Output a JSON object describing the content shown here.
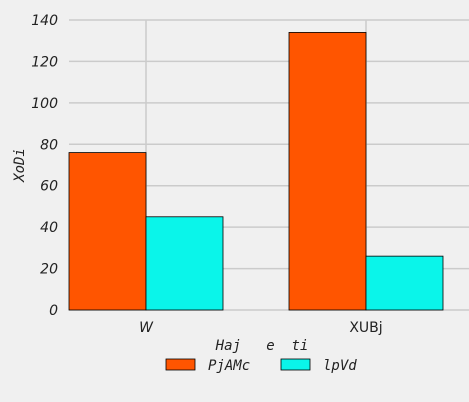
{
  "chart_data": {
    "type": "bar",
    "categories": [
      "W",
      "XUBj"
    ],
    "category_label_styles": [
      "italic",
      "normal"
    ],
    "series": [
      {
        "name": "PjAMc",
        "color": "#ff5500",
        "values": [
          76,
          134
        ]
      },
      {
        "name": "lpVd",
        "color": "#0af5ea",
        "values": [
          45,
          26
        ]
      }
    ],
    "xlabel": "Haj   e  ti",
    "ylabel": "XoDi",
    "ylim": [
      0,
      140
    ],
    "yticks": [
      "0",
      "20",
      "40",
      "60",
      "80",
      "100",
      "120",
      "140"
    ],
    "grid": true,
    "legend_position": "bottom-center"
  }
}
